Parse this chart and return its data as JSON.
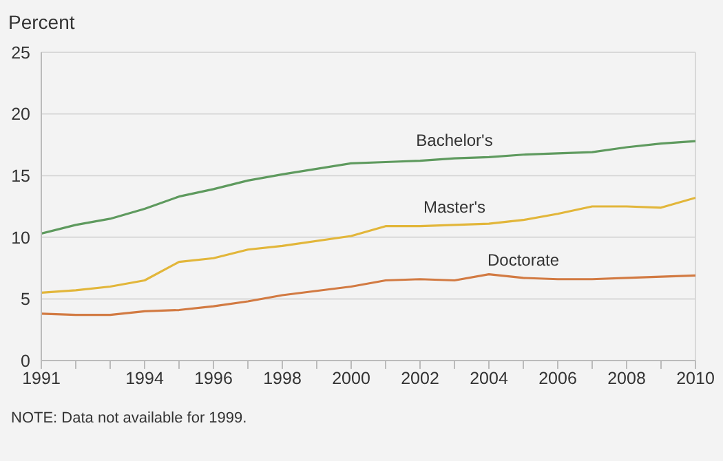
{
  "chart_data": {
    "type": "line",
    "ylabel": "Percent",
    "x": [
      1991,
      1992,
      1993,
      1994,
      1995,
      1996,
      1997,
      1998,
      2000,
      2001,
      2002,
      2003,
      2004,
      2005,
      2006,
      2007,
      2008,
      2009,
      2010
    ],
    "series": [
      {
        "name": "Bachelor's",
        "color": "#5e9a5e",
        "values": [
          10.3,
          11.0,
          11.5,
          12.3,
          13.3,
          13.9,
          14.6,
          15.1,
          16.0,
          16.1,
          16.2,
          16.4,
          16.5,
          16.7,
          16.8,
          16.9,
          17.3,
          17.6,
          17.8
        ]
      },
      {
        "name": "Master's",
        "color": "#e2b63a",
        "values": [
          5.5,
          5.7,
          6.0,
          6.5,
          8.0,
          8.3,
          9.0,
          9.3,
          10.1,
          10.9,
          10.9,
          11.0,
          11.1,
          11.4,
          11.9,
          12.5,
          12.5,
          12.4,
          13.2
        ]
      },
      {
        "name": "Doctorate",
        "color": "#d27a42",
        "values": [
          3.8,
          3.7,
          3.7,
          4.0,
          4.1,
          4.4,
          4.8,
          5.3,
          6.0,
          6.5,
          6.6,
          6.5,
          7.0,
          6.7,
          6.6,
          6.6,
          6.7,
          6.8,
          6.9
        ]
      }
    ],
    "xlim": [
      1991,
      2010
    ],
    "xticks": [
      1991,
      {
        "value": 1992,
        "label": null
      },
      {
        "value": 1993,
        "label": null
      },
      1994,
      {
        "value": 1995,
        "label": null
      },
      1996,
      {
        "value": 1997,
        "label": null
      },
      1998,
      {
        "value": 1999,
        "label": null
      },
      2000,
      {
        "value": 2001,
        "label": null
      },
      2002,
      {
        "value": 2003,
        "label": null
      },
      2004,
      {
        "value": 2005,
        "label": null
      },
      2006,
      {
        "value": 2007,
        "label": null
      },
      2008,
      {
        "value": 2009,
        "label": null
      },
      2010
    ],
    "ylim": [
      0,
      25
    ],
    "yticks": [
      0,
      5,
      10,
      15,
      20,
      25
    ],
    "grid": "y",
    "marker": "none",
    "line_style": "solid",
    "annotations": [
      "NOTE: Data not available for 1999."
    ]
  }
}
